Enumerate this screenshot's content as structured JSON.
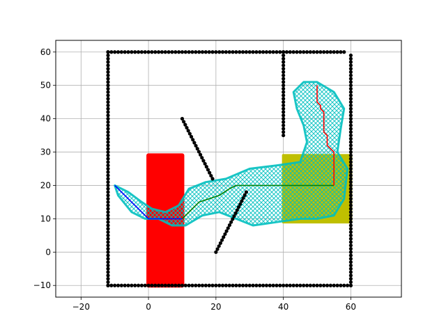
{
  "chart_data": {
    "type": "scatter",
    "title": "",
    "xlabel": "",
    "ylabel": "",
    "xlim": [
      -27.5,
      75
    ],
    "ylim": [
      -13.5,
      63.5
    ],
    "grid": true,
    "xticks": [
      -20,
      0,
      20,
      40,
      60
    ],
    "yticks": [
      -10,
      0,
      10,
      20,
      30,
      40,
      50,
      60
    ],
    "xtick_labels": [
      "−20",
      "0",
      "20",
      "40",
      "60"
    ],
    "ytick_labels": [
      "−10",
      "0",
      "10",
      "20",
      "30",
      "40",
      "50",
      "60"
    ],
    "colors": {
      "obstacles": "#000000",
      "start_zone": "#ff0000",
      "goal_zone": "#bfbf00",
      "explored": "#00bfbf",
      "path_from_start": "#0000ff",
      "path_connecting": "#008000",
      "path_from_goal": "#ff0000"
    },
    "obstacle_segments": [
      {
        "from": [
          -12,
          -10
        ],
        "to": [
          -12,
          60
        ]
      },
      {
        "from": [
          -12,
          60
        ],
        "to": [
          58,
          60
        ]
      },
      {
        "from": [
          60,
          -10
        ],
        "to": [
          60,
          59
        ]
      },
      {
        "from": [
          -12,
          -10
        ],
        "to": [
          60,
          -10
        ]
      },
      {
        "from": [
          40,
          35
        ],
        "to": [
          40,
          60
        ]
      },
      {
        "from": [
          10,
          40
        ],
        "to": [
          19,
          22
        ]
      },
      {
        "from": [
          20,
          0
        ],
        "to": [
          29,
          18
        ]
      }
    ],
    "start_zone": {
      "x": [
        0,
        10
      ],
      "y": [
        -10,
        29
      ]
    },
    "goal_zone": {
      "x": [
        40,
        60
      ],
      "y": [
        9,
        29
      ]
    },
    "explored_region": [
      [
        -10,
        20
      ],
      [
        -6,
        18
      ],
      [
        -2,
        15
      ],
      [
        1,
        13
      ],
      [
        5,
        12
      ],
      [
        9,
        14
      ],
      [
        12,
        19
      ],
      [
        17,
        21
      ],
      [
        23,
        22
      ],
      [
        30,
        25
      ],
      [
        38,
        26
      ],
      [
        45,
        27
      ],
      [
        47,
        33
      ],
      [
        46,
        38
      ],
      [
        44,
        43
      ],
      [
        43,
        48
      ],
      [
        46,
        51
      ],
      [
        50,
        51
      ],
      [
        55,
        48
      ],
      [
        58,
        43
      ],
      [
        57,
        37
      ],
      [
        56,
        30
      ],
      [
        59,
        25
      ],
      [
        58,
        16
      ],
      [
        55,
        11
      ],
      [
        50,
        10
      ],
      [
        45,
        10
      ],
      [
        38,
        9
      ],
      [
        31,
        8
      ],
      [
        26,
        10
      ],
      [
        21,
        12
      ],
      [
        16,
        11
      ],
      [
        11,
        8
      ],
      [
        7,
        8
      ],
      [
        3,
        10
      ],
      [
        -1,
        10
      ],
      [
        -5,
        12
      ],
      [
        -9,
        17
      ]
    ],
    "path_from_start": {
      "x": [
        -10,
        0,
        10
      ],
      "y": [
        20,
        10,
        10
      ]
    },
    "path_connecting": {
      "x": [
        10,
        13,
        15,
        18,
        21,
        24,
        26,
        28,
        40,
        45,
        50,
        55
      ],
      "y": [
        10,
        13,
        15,
        16,
        17,
        19,
        20,
        20,
        20,
        20,
        20,
        20
      ]
    },
    "path_from_goal": {
      "x": [
        55,
        55,
        53,
        53,
        52,
        52,
        51,
        51,
        50,
        50
      ],
      "y": [
        20,
        30,
        32,
        35,
        36,
        42,
        43,
        44,
        45,
        50
      ]
    }
  }
}
